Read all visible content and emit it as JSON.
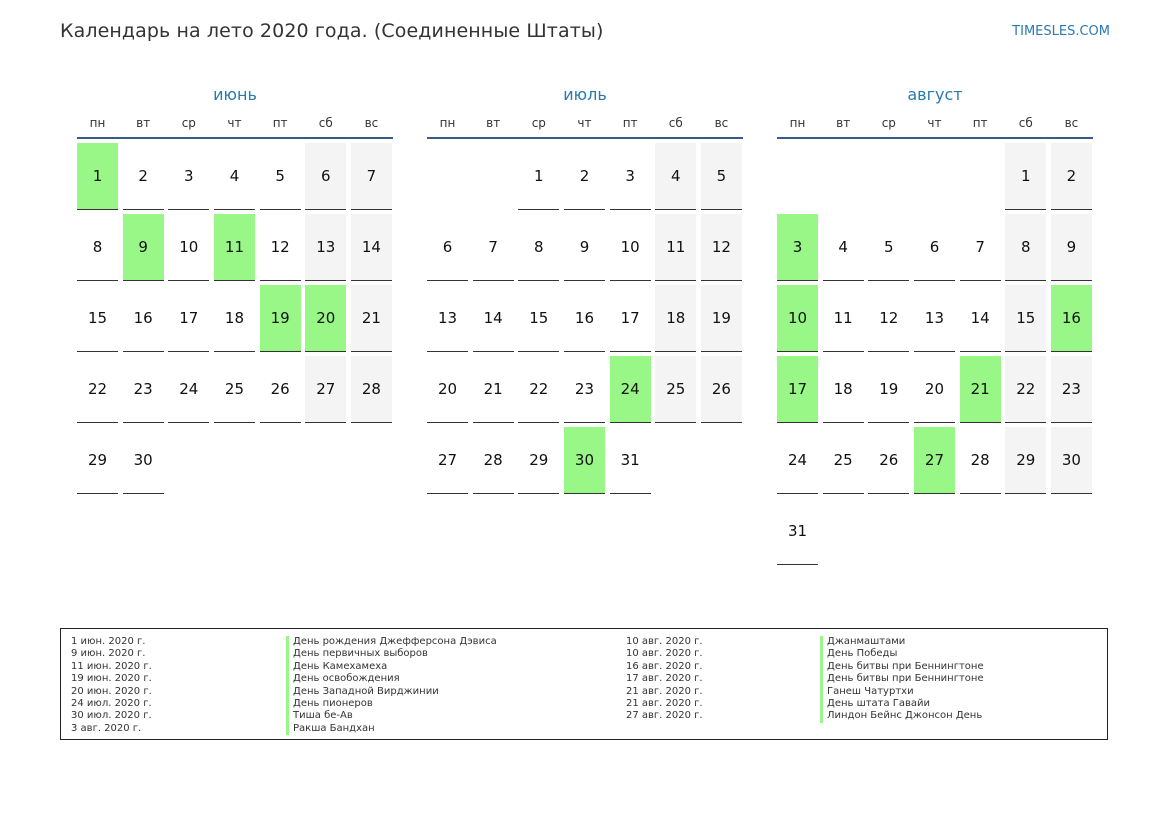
{
  "header": {
    "title": "Календарь на лето 2020 года. (Соединенные Штаты)",
    "site": "TIMESLES.COM"
  },
  "weekdays": [
    "пн",
    "вт",
    "ср",
    "чт",
    "пт",
    "сб",
    "вс"
  ],
  "months": [
    {
      "name": "июнь",
      "offset": 0,
      "days": 30,
      "holidays": [
        1,
        9,
        11,
        19,
        20
      ]
    },
    {
      "name": "июль",
      "offset": 2,
      "days": 31,
      "holidays": [
        24,
        30
      ]
    },
    {
      "name": "август",
      "offset": 5,
      "days": 31,
      "holidays": [
        3,
        10,
        16,
        17,
        21,
        27
      ]
    }
  ],
  "legend": {
    "left": [
      {
        "date": "1 июн. 2020 г.",
        "name": "День рождения Джефферсона Дэвиса"
      },
      {
        "date": "9 июн. 2020 г.",
        "name": "День первичных выборов"
      },
      {
        "date": "11 июн. 2020 г.",
        "name": "День Камехамеха"
      },
      {
        "date": "19 июн. 2020 г.",
        "name": "День освобождения"
      },
      {
        "date": "20 июн. 2020 г.",
        "name": "День Западной Вирджинии"
      },
      {
        "date": "24 июл. 2020 г.",
        "name": "День пионеров"
      },
      {
        "date": "30 июл. 2020 г.",
        "name": "Тиша бе-Ав"
      },
      {
        "date": "3 авг. 2020 г.",
        "name": "Ракша Бандхан"
      }
    ],
    "right": [
      {
        "date": "10 авг. 2020 г.",
        "name": "Джанмаштами"
      },
      {
        "date": "10 авг. 2020 г.",
        "name": "День Победы"
      },
      {
        "date": "16 авг. 2020 г.",
        "name": "День битвы при Беннингтоне"
      },
      {
        "date": "17 авг. 2020 г.",
        "name": "День битвы при Беннингтоне"
      },
      {
        "date": "21 авг. 2020 г.",
        "name": "Ганеш Чатуртхи"
      },
      {
        "date": "21 авг. 2020 г.",
        "name": "День штата Гавайи"
      },
      {
        "date": "27 авг. 2020 г.",
        "name": "Линдон Бейнс Джонсон День"
      }
    ]
  }
}
